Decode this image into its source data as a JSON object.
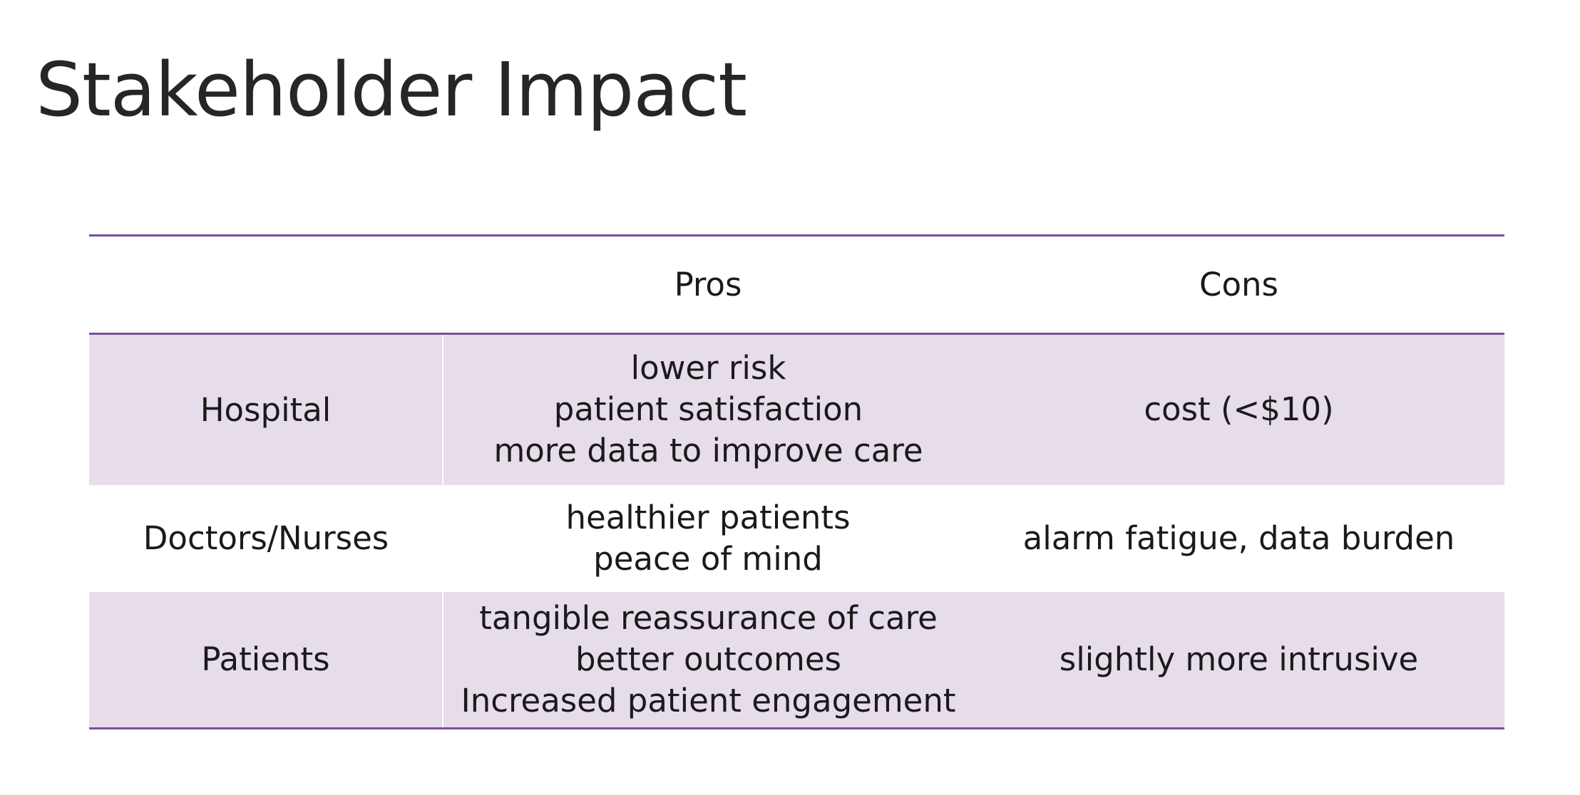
{
  "title": "Stakeholder Impact",
  "table": {
    "headers": [
      "",
      "Pros",
      "Cons"
    ],
    "rows": [
      {
        "stakeholder": "Hospital",
        "pros": [
          "lower risk",
          "patient satisfaction",
          "more data to improve care"
        ],
        "cons": "cost (<$10)"
      },
      {
        "stakeholder": "Doctors/Nurses",
        "pros": [
          "healthier patients",
          "peace of mind"
        ],
        "cons": "alarm fatigue, data burden"
      },
      {
        "stakeholder": "Patients",
        "pros": [
          "tangible reassurance of care",
          "better outcomes",
          "Increased patient engagement"
        ],
        "cons": "slightly more intrusive"
      }
    ]
  },
  "colors": {
    "rule": "#7a4f96",
    "band": "#e6dcea",
    "text": "#1a1a1a"
  }
}
